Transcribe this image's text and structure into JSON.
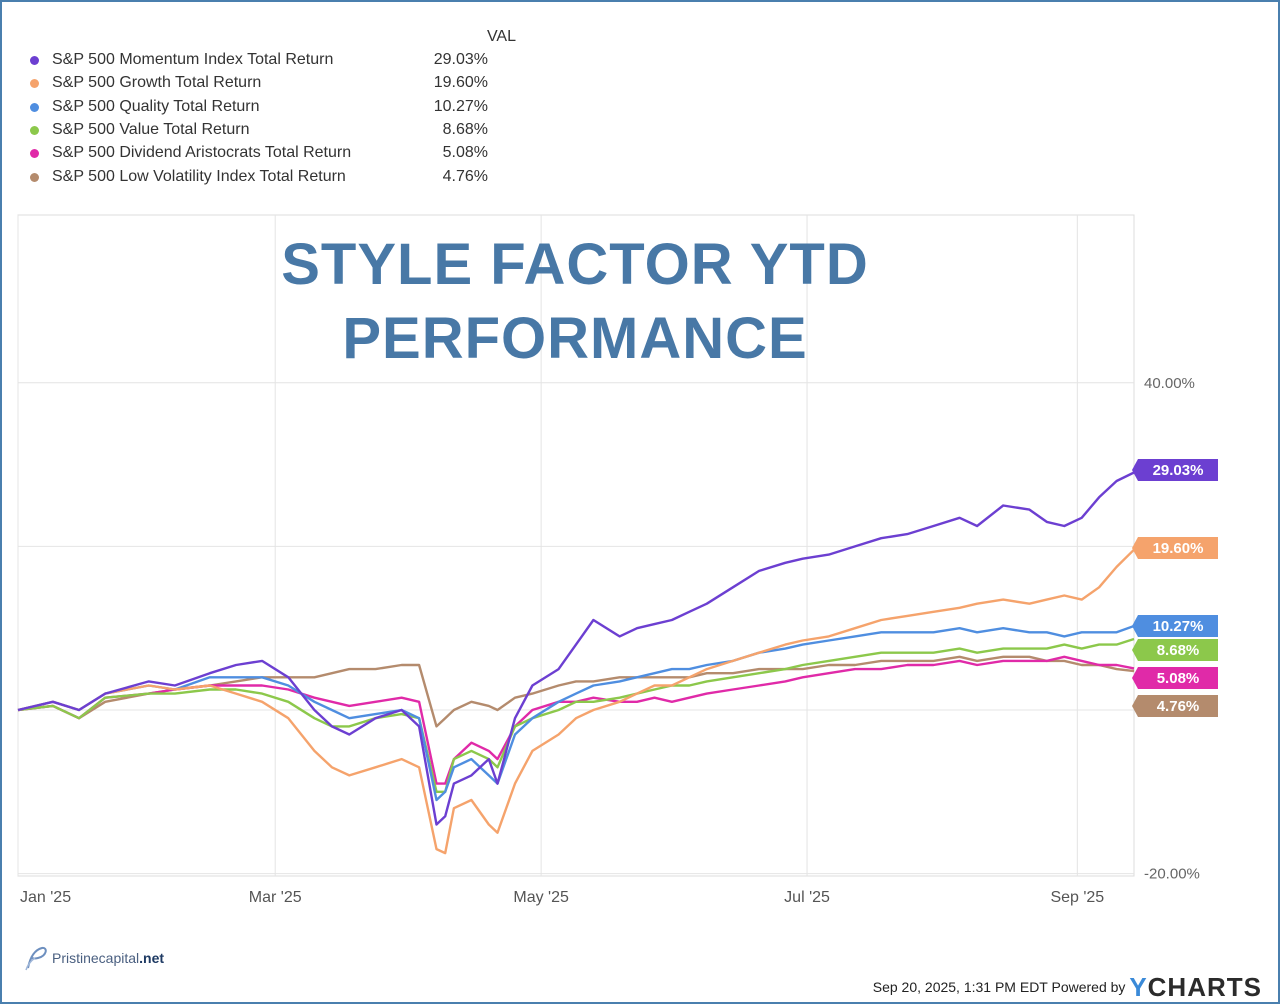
{
  "chart_data": {
    "type": "line",
    "title": "STYLE FACTOR YTD\nPERFORMANCE",
    "title_lines": [
      "STYLE FACTOR YTD",
      "PERFORMANCE"
    ],
    "legend_header": "VAL",
    "x_tick_labels": [
      "Jan '25",
      "Mar '25",
      "May '25",
      "Jul '25",
      "Sep '25"
    ],
    "x_tick_days": [
      0,
      59,
      120,
      181,
      243
    ],
    "y_ticks": [
      {
        "value": 40,
        "label": "40.00%"
      },
      {
        "value": 20,
        "label": "20.00%"
      },
      {
        "value": -20,
        "label": "-20.00%"
      }
    ],
    "ylim": [
      -20,
      40
    ],
    "grid": true,
    "legend_position": "top-left",
    "series": [
      {
        "name": "S&P 500 Momentum Index Total Return",
        "last_label": "29.03%",
        "last": 29.03,
        "color": "#6c3fd1",
        "points": [
          [
            0,
            0
          ],
          [
            8,
            1
          ],
          [
            14,
            0
          ],
          [
            20,
            2
          ],
          [
            30,
            3.5
          ],
          [
            36,
            3
          ],
          [
            44,
            4.5
          ],
          [
            50,
            5.5
          ],
          [
            56,
            6
          ],
          [
            62,
            4
          ],
          [
            68,
            0
          ],
          [
            72,
            -2
          ],
          [
            76,
            -3
          ],
          [
            82,
            -1
          ],
          [
            88,
            0
          ],
          [
            92,
            -2
          ],
          [
            96,
            -14
          ],
          [
            98,
            -13
          ],
          [
            100,
            -9
          ],
          [
            104,
            -8
          ],
          [
            108,
            -6
          ],
          [
            110,
            -9
          ],
          [
            114,
            -1
          ],
          [
            118,
            3
          ],
          [
            124,
            5
          ],
          [
            128,
            8
          ],
          [
            132,
            11
          ],
          [
            138,
            9
          ],
          [
            142,
            10
          ],
          [
            146,
            10.5
          ],
          [
            150,
            11
          ],
          [
            154,
            12
          ],
          [
            158,
            13
          ],
          [
            164,
            15
          ],
          [
            170,
            17
          ],
          [
            176,
            18
          ],
          [
            180,
            18.5
          ],
          [
            186,
            19
          ],
          [
            192,
            20
          ],
          [
            198,
            21
          ],
          [
            204,
            21.5
          ],
          [
            210,
            22.5
          ],
          [
            216,
            23.5
          ],
          [
            220,
            22.5
          ],
          [
            226,
            25
          ],
          [
            232,
            24.5
          ],
          [
            236,
            23
          ],
          [
            240,
            22.5
          ],
          [
            244,
            23.5
          ],
          [
            248,
            26
          ],
          [
            252,
            28
          ],
          [
            256,
            29.03
          ]
        ]
      },
      {
        "name": "S&P 500 Growth Total Return",
        "last_label": "19.60%",
        "last": 19.6,
        "color": "#f5a36c",
        "points": [
          [
            0,
            0
          ],
          [
            8,
            1
          ],
          [
            14,
            0
          ],
          [
            20,
            2
          ],
          [
            30,
            3
          ],
          [
            36,
            2.5
          ],
          [
            44,
            3
          ],
          [
            50,
            2
          ],
          [
            56,
            1
          ],
          [
            62,
            -1
          ],
          [
            68,
            -5
          ],
          [
            72,
            -7
          ],
          [
            76,
            -8
          ],
          [
            82,
            -7
          ],
          [
            88,
            -6
          ],
          [
            92,
            -7
          ],
          [
            96,
            -17
          ],
          [
            98,
            -17.5
          ],
          [
            100,
            -12
          ],
          [
            104,
            -11
          ],
          [
            108,
            -14
          ],
          [
            110,
            -15
          ],
          [
            114,
            -9
          ],
          [
            118,
            -5
          ],
          [
            124,
            -3
          ],
          [
            128,
            -1
          ],
          [
            132,
            0
          ],
          [
            138,
            1
          ],
          [
            142,
            2
          ],
          [
            146,
            3
          ],
          [
            150,
            3
          ],
          [
            154,
            4
          ],
          [
            158,
            5
          ],
          [
            164,
            6
          ],
          [
            170,
            7
          ],
          [
            176,
            8
          ],
          [
            180,
            8.5
          ],
          [
            186,
            9
          ],
          [
            192,
            10
          ],
          [
            198,
            11
          ],
          [
            204,
            11.5
          ],
          [
            210,
            12
          ],
          [
            216,
            12.5
          ],
          [
            220,
            13
          ],
          [
            226,
            13.5
          ],
          [
            232,
            13
          ],
          [
            236,
            13.5
          ],
          [
            240,
            14
          ],
          [
            244,
            13.5
          ],
          [
            248,
            15
          ],
          [
            252,
            17.5
          ],
          [
            256,
            19.6
          ]
        ]
      },
      {
        "name": "S&P 500 Quality Total Return",
        "last_label": "10.27%",
        "last": 10.27,
        "color": "#4f8ee0",
        "points": [
          [
            0,
            0
          ],
          [
            8,
            1
          ],
          [
            14,
            0
          ],
          [
            20,
            2
          ],
          [
            30,
            3
          ],
          [
            36,
            2.5
          ],
          [
            44,
            4
          ],
          [
            50,
            4
          ],
          [
            56,
            4
          ],
          [
            62,
            3
          ],
          [
            68,
            1
          ],
          [
            72,
            0
          ],
          [
            76,
            -1
          ],
          [
            82,
            -0.5
          ],
          [
            88,
            0
          ],
          [
            92,
            -1
          ],
          [
            96,
            -11
          ],
          [
            98,
            -10
          ],
          [
            100,
            -7
          ],
          [
            104,
            -6
          ],
          [
            108,
            -8
          ],
          [
            110,
            -9
          ],
          [
            114,
            -3
          ],
          [
            118,
            -1
          ],
          [
            124,
            1
          ],
          [
            128,
            2
          ],
          [
            132,
            3
          ],
          [
            138,
            3.5
          ],
          [
            142,
            4
          ],
          [
            146,
            4.5
          ],
          [
            150,
            5
          ],
          [
            154,
            5
          ],
          [
            158,
            5.5
          ],
          [
            164,
            6
          ],
          [
            170,
            7
          ],
          [
            176,
            7.5
          ],
          [
            180,
            8
          ],
          [
            186,
            8.5
          ],
          [
            192,
            9
          ],
          [
            198,
            9.5
          ],
          [
            204,
            9.5
          ],
          [
            210,
            9.5
          ],
          [
            216,
            10
          ],
          [
            220,
            9.5
          ],
          [
            226,
            10
          ],
          [
            232,
            9.5
          ],
          [
            236,
            9.5
          ],
          [
            240,
            9
          ],
          [
            244,
            9.5
          ],
          [
            248,
            9.5
          ],
          [
            252,
            9.5
          ],
          [
            256,
            10.27
          ]
        ]
      },
      {
        "name": "S&P 500 Value Total Return",
        "last_label": "8.68%",
        "last": 8.68,
        "color": "#8cc84b",
        "points": [
          [
            0,
            0
          ],
          [
            8,
            0.5
          ],
          [
            14,
            -1
          ],
          [
            20,
            1.5
          ],
          [
            30,
            2
          ],
          [
            36,
            2
          ],
          [
            44,
            2.5
          ],
          [
            50,
            2.5
          ],
          [
            56,
            2
          ],
          [
            62,
            1
          ],
          [
            68,
            -1
          ],
          [
            72,
            -2
          ],
          [
            76,
            -2
          ],
          [
            82,
            -1
          ],
          [
            88,
            -0.5
          ],
          [
            92,
            -1
          ],
          [
            96,
            -10
          ],
          [
            98,
            -10
          ],
          [
            100,
            -6
          ],
          [
            104,
            -5
          ],
          [
            108,
            -6
          ],
          [
            110,
            -7
          ],
          [
            114,
            -2
          ],
          [
            118,
            -1
          ],
          [
            124,
            0
          ],
          [
            128,
            1
          ],
          [
            132,
            1
          ],
          [
            138,
            1.5
          ],
          [
            142,
            2
          ],
          [
            146,
            2.5
          ],
          [
            150,
            3
          ],
          [
            154,
            3
          ],
          [
            158,
            3.5
          ],
          [
            164,
            4
          ],
          [
            170,
            4.5
          ],
          [
            176,
            5
          ],
          [
            180,
            5.5
          ],
          [
            186,
            6
          ],
          [
            192,
            6.5
          ],
          [
            198,
            7
          ],
          [
            204,
            7
          ],
          [
            210,
            7
          ],
          [
            216,
            7.5
          ],
          [
            220,
            7
          ],
          [
            226,
            7.5
          ],
          [
            232,
            7.5
          ],
          [
            236,
            7.5
          ],
          [
            240,
            8
          ],
          [
            244,
            7.5
          ],
          [
            248,
            8
          ],
          [
            252,
            8
          ],
          [
            256,
            8.68
          ]
        ]
      },
      {
        "name": "S&P 500 Dividend Aristocrats Total Return",
        "last_label": "5.08%",
        "last": 5.08,
        "color": "#e02aa8",
        "points": [
          [
            0,
            0
          ],
          [
            8,
            0.5
          ],
          [
            14,
            -1
          ],
          [
            20,
            1.5
          ],
          [
            30,
            2
          ],
          [
            36,
            2.5
          ],
          [
            44,
            3
          ],
          [
            50,
            3
          ],
          [
            56,
            3
          ],
          [
            62,
            2.5
          ],
          [
            68,
            1.5
          ],
          [
            72,
            1
          ],
          [
            76,
            0.5
          ],
          [
            82,
            1
          ],
          [
            88,
            1.5
          ],
          [
            92,
            1
          ],
          [
            96,
            -9
          ],
          [
            98,
            -9
          ],
          [
            100,
            -6
          ],
          [
            104,
            -4
          ],
          [
            108,
            -5
          ],
          [
            110,
            -6
          ],
          [
            114,
            -2
          ],
          [
            118,
            0
          ],
          [
            124,
            1
          ],
          [
            128,
            1
          ],
          [
            132,
            1.5
          ],
          [
            138,
            1
          ],
          [
            142,
            1
          ],
          [
            146,
            1.5
          ],
          [
            150,
            1
          ],
          [
            154,
            1.5
          ],
          [
            158,
            2
          ],
          [
            164,
            2.5
          ],
          [
            170,
            3
          ],
          [
            176,
            3.5
          ],
          [
            180,
            4
          ],
          [
            186,
            4.5
          ],
          [
            192,
            5
          ],
          [
            198,
            5
          ],
          [
            204,
            5.5
          ],
          [
            210,
            5.5
          ],
          [
            216,
            6
          ],
          [
            220,
            5.5
          ],
          [
            226,
            6
          ],
          [
            232,
            6
          ],
          [
            236,
            6
          ],
          [
            240,
            6.5
          ],
          [
            244,
            6
          ],
          [
            248,
            5.5
          ],
          [
            252,
            5.5
          ],
          [
            256,
            5.08
          ]
        ]
      },
      {
        "name": "S&P 500 Low Volatility Index Total Return",
        "last_label": "4.76%",
        "last": 4.76,
        "color": "#b48b6d",
        "points": [
          [
            0,
            0
          ],
          [
            8,
            0.5
          ],
          [
            14,
            -1
          ],
          [
            20,
            1
          ],
          [
            30,
            2
          ],
          [
            36,
            2.5
          ],
          [
            44,
            3
          ],
          [
            50,
            3.5
          ],
          [
            56,
            4
          ],
          [
            62,
            4
          ],
          [
            68,
            4
          ],
          [
            72,
            4.5
          ],
          [
            76,
            5
          ],
          [
            82,
            5
          ],
          [
            88,
            5.5
          ],
          [
            92,
            5.5
          ],
          [
            96,
            -2
          ],
          [
            98,
            -1
          ],
          [
            100,
            0
          ],
          [
            104,
            1
          ],
          [
            108,
            0.5
          ],
          [
            110,
            0
          ],
          [
            114,
            1.5
          ],
          [
            118,
            2
          ],
          [
            124,
            3
          ],
          [
            128,
            3.5
          ],
          [
            132,
            3.5
          ],
          [
            138,
            4
          ],
          [
            142,
            4
          ],
          [
            146,
            4
          ],
          [
            150,
            4
          ],
          [
            154,
            4
          ],
          [
            158,
            4.5
          ],
          [
            164,
            4.5
          ],
          [
            170,
            5
          ],
          [
            176,
            5
          ],
          [
            180,
            5
          ],
          [
            186,
            5.5
          ],
          [
            192,
            5.5
          ],
          [
            198,
            6
          ],
          [
            204,
            6
          ],
          [
            210,
            6
          ],
          [
            216,
            6.5
          ],
          [
            220,
            6
          ],
          [
            226,
            6.5
          ],
          [
            232,
            6.5
          ],
          [
            236,
            6
          ],
          [
            240,
            6
          ],
          [
            244,
            5.5
          ],
          [
            248,
            5.5
          ],
          [
            252,
            5
          ],
          [
            256,
            4.76
          ]
        ]
      }
    ]
  },
  "branding": {
    "site_prefix": "Pristinecapital",
    "site_suffix": ".net",
    "footer_text": "Sep 20, 2025, 1:31 PM EDT Powered by",
    "ycharts_y": "Y",
    "ycharts_rest": "CHARTS"
  }
}
